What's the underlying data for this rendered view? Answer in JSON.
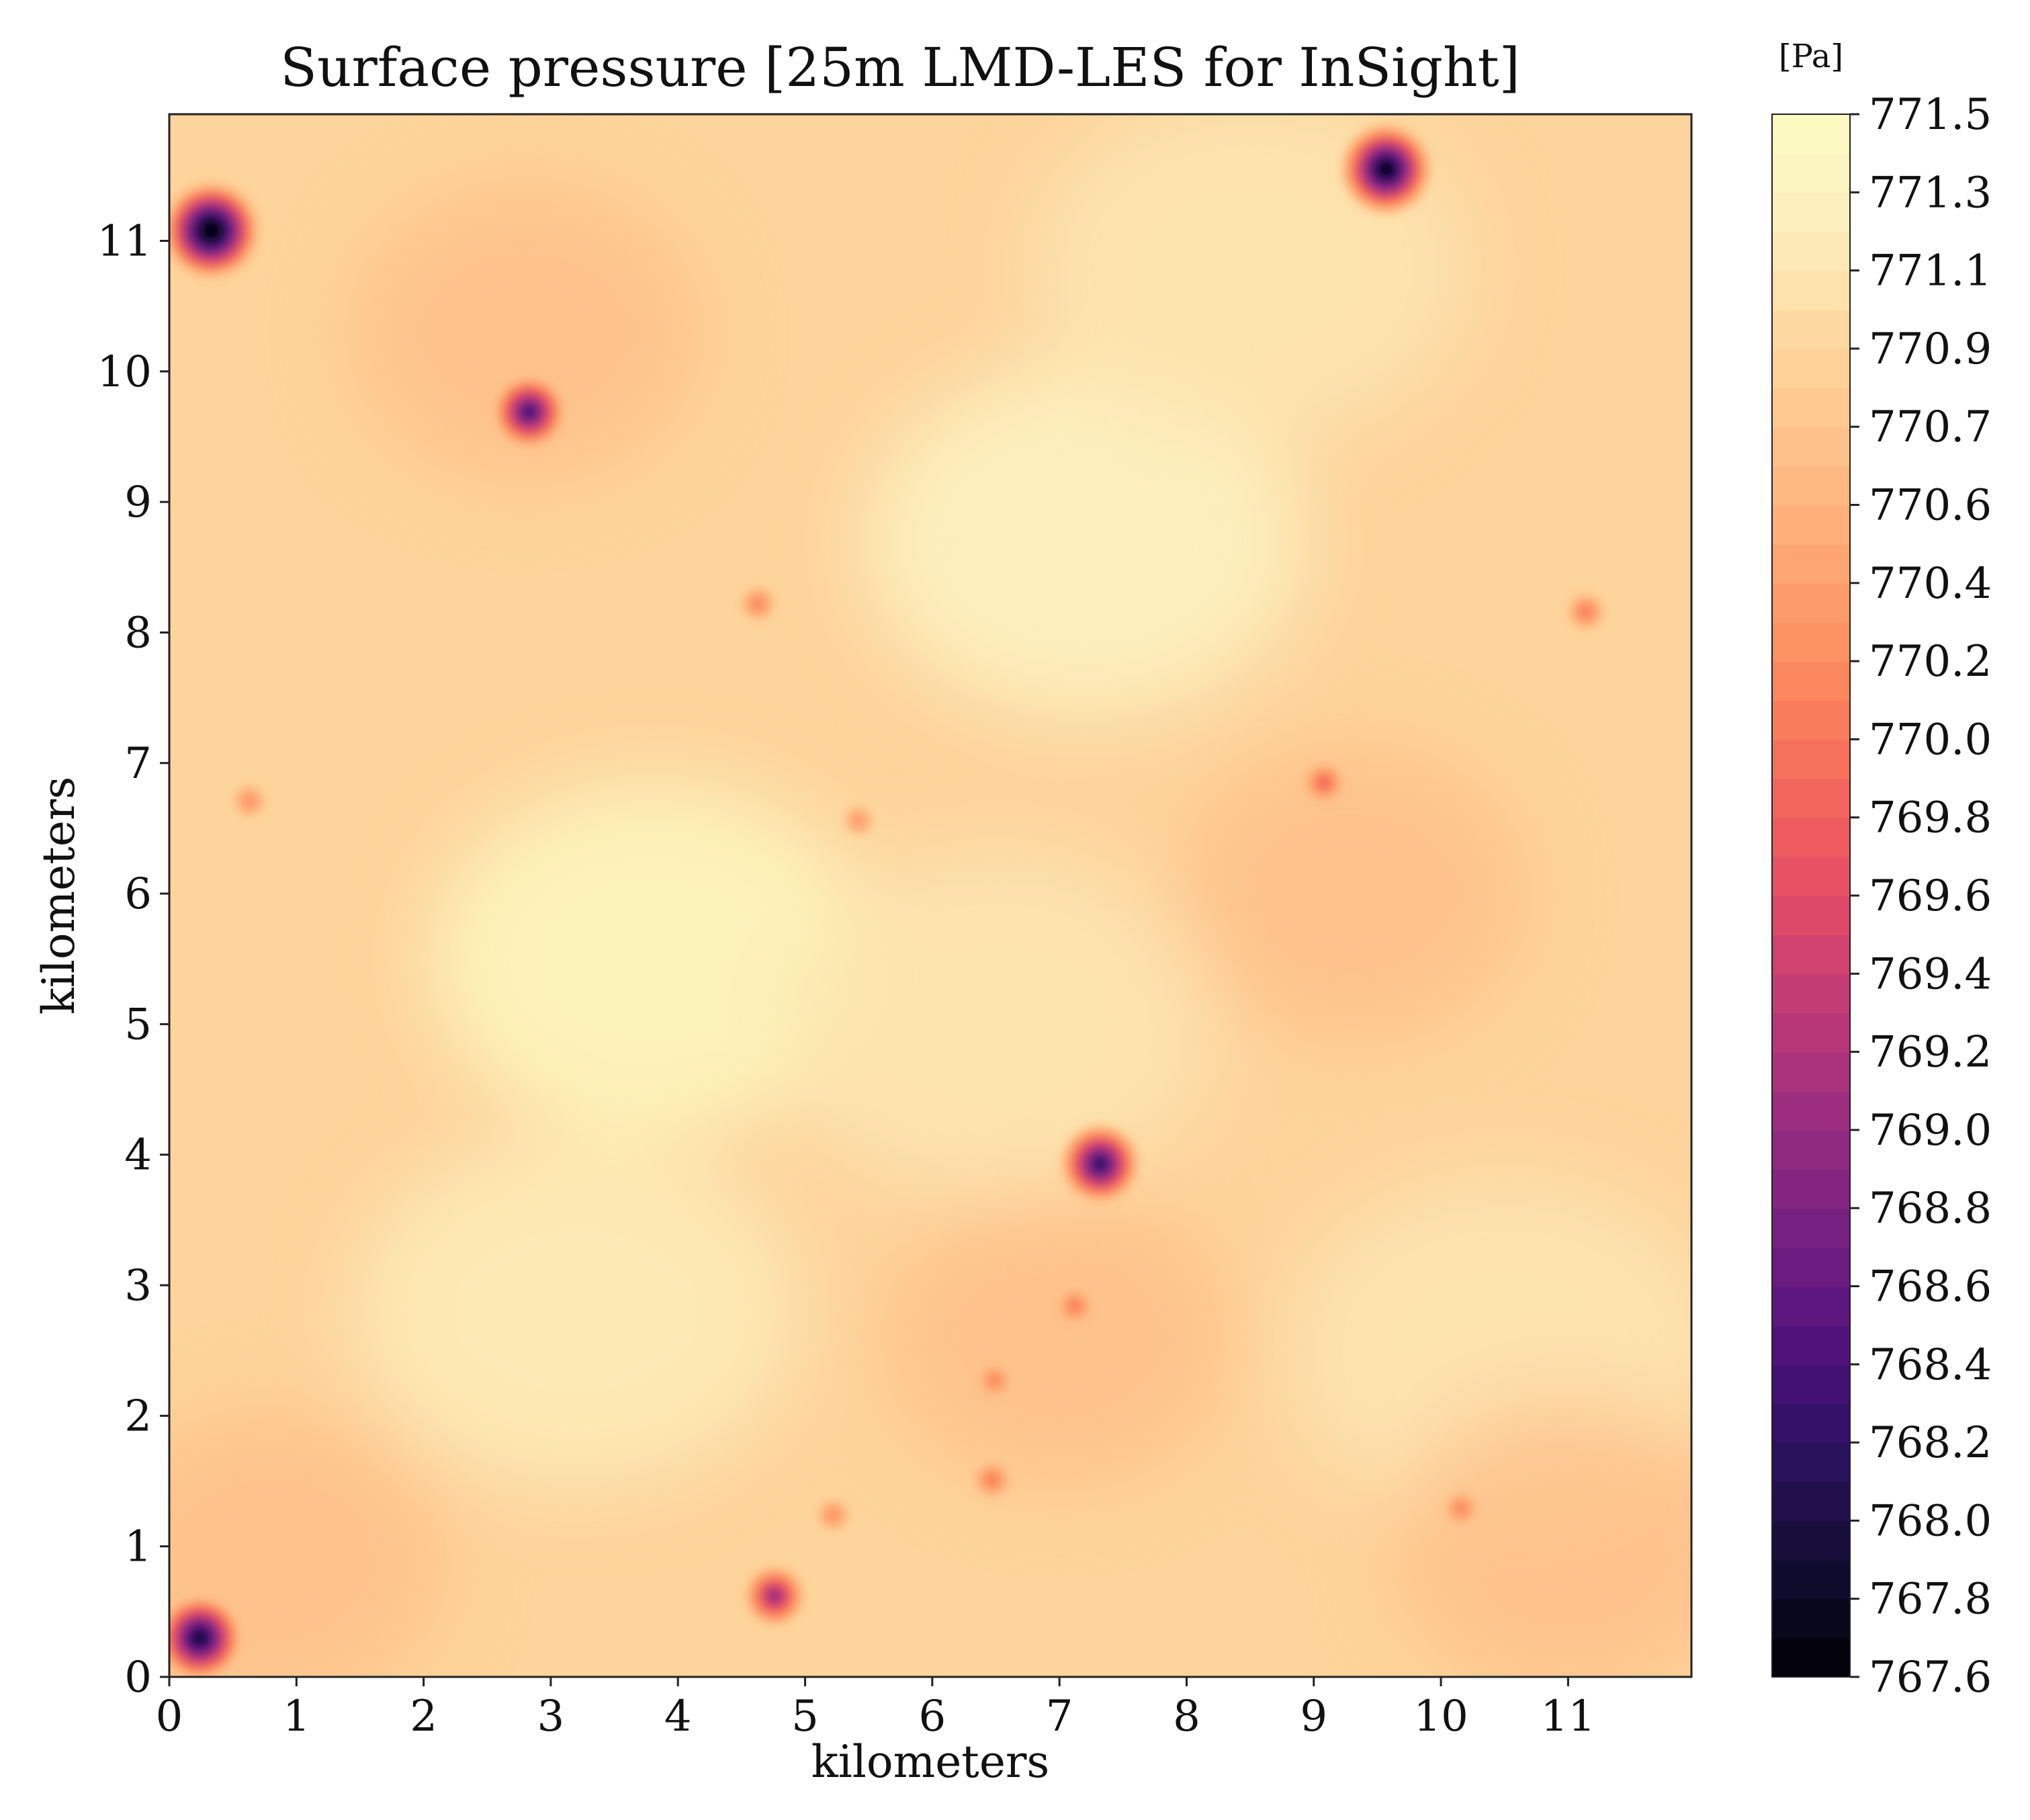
{
  "chart_data": {
    "type": "heatmap",
    "title": "Surface pressure [25m LMD-LES for InSight]",
    "xlabel": "kilometers",
    "ylabel": "kilometers",
    "xlim": [
      0,
      11.97
    ],
    "ylim": [
      0,
      11.97
    ],
    "xticks": [
      "0",
      "1",
      "2",
      "3",
      "4",
      "5",
      "6",
      "7",
      "8",
      "9",
      "10",
      "11"
    ],
    "yticks": [
      "0",
      "1",
      "2",
      "3",
      "4",
      "5",
      "6",
      "7",
      "8",
      "9",
      "10",
      "11"
    ],
    "colorbar": {
      "label": "[Pa]",
      "range": [
        767.6,
        771.5
      ],
      "ticks": [
        "767.6",
        "767.8",
        "768.0",
        "768.2",
        "768.4",
        "768.6",
        "768.8",
        "769.0",
        "769.2",
        "769.4",
        "769.6",
        "769.8",
        "770.0",
        "770.2",
        "770.4",
        "770.6",
        "770.7",
        "770.9",
        "771.1",
        "771.3",
        "771.5"
      ],
      "colormap": "magma",
      "colors": [
        "#000004",
        "#0b0924",
        "#1c1044",
        "#2f1163",
        "#4a1079",
        "#641a80",
        "#7c2382",
        "#962c80",
        "#b1357b",
        "#ca3e72",
        "#e24d66",
        "#f1605d",
        "#f8765c",
        "#fc8d5e",
        "#fea16e",
        "#feb47e",
        "#fec68d",
        "#fdd59c",
        "#fde6b1",
        "#fcf3c3",
        "#fcfdbf"
      ]
    },
    "field_background": 770.9,
    "high_pressure_regions": [
      {
        "x": 3.8,
        "y": 5.5,
        "value": 771.4
      },
      {
        "x": 7.2,
        "y": 8.7,
        "value": 771.3
      },
      {
        "x": 3.2,
        "y": 2.8,
        "value": 771.2
      },
      {
        "x": 10.5,
        "y": 2.5,
        "value": 771.1
      },
      {
        "x": 6.5,
        "y": 5.0,
        "value": 771.1
      },
      {
        "x": 8.5,
        "y": 10.8,
        "value": 771.1
      }
    ],
    "low_pressure_regions": [
      {
        "x": 2.8,
        "y": 10.3,
        "value": 770.6
      },
      {
        "x": 0.8,
        "y": 0.9,
        "value": 770.6
      },
      {
        "x": 7.0,
        "y": 2.6,
        "value": 770.6
      },
      {
        "x": 9.3,
        "y": 6.0,
        "value": 770.6
      },
      {
        "x": 11.0,
        "y": 1.0,
        "value": 770.6
      }
    ],
    "vortices": [
      {
        "x": 0.33,
        "y": 11.08,
        "min_pressure": 767.6
      },
      {
        "x": 9.57,
        "y": 11.55,
        "min_pressure": 767.9
      },
      {
        "x": 2.83,
        "y": 9.69,
        "min_pressure": 768.6
      },
      {
        "x": 7.32,
        "y": 3.93,
        "min_pressure": 768.4
      },
      {
        "x": 0.24,
        "y": 0.3,
        "min_pressure": 768.1
      },
      {
        "x": 4.76,
        "y": 0.62,
        "min_pressure": 769.2
      },
      {
        "x": 9.08,
        "y": 6.85,
        "min_pressure": 770.0
      },
      {
        "x": 11.14,
        "y": 8.16,
        "min_pressure": 770.2
      },
      {
        "x": 6.47,
        "y": 1.51,
        "min_pressure": 770.2
      },
      {
        "x": 7.12,
        "y": 2.84,
        "min_pressure": 770.2
      },
      {
        "x": 10.16,
        "y": 1.29,
        "min_pressure": 770.3
      },
      {
        "x": 4.63,
        "y": 8.22,
        "min_pressure": 770.3
      },
      {
        "x": 0.63,
        "y": 6.71,
        "min_pressure": 770.4
      },
      {
        "x": 6.49,
        "y": 2.27,
        "min_pressure": 770.3
      },
      {
        "x": 5.22,
        "y": 1.24,
        "min_pressure": 770.4
      },
      {
        "x": 5.42,
        "y": 6.56,
        "min_pressure": 770.5
      }
    ]
  }
}
